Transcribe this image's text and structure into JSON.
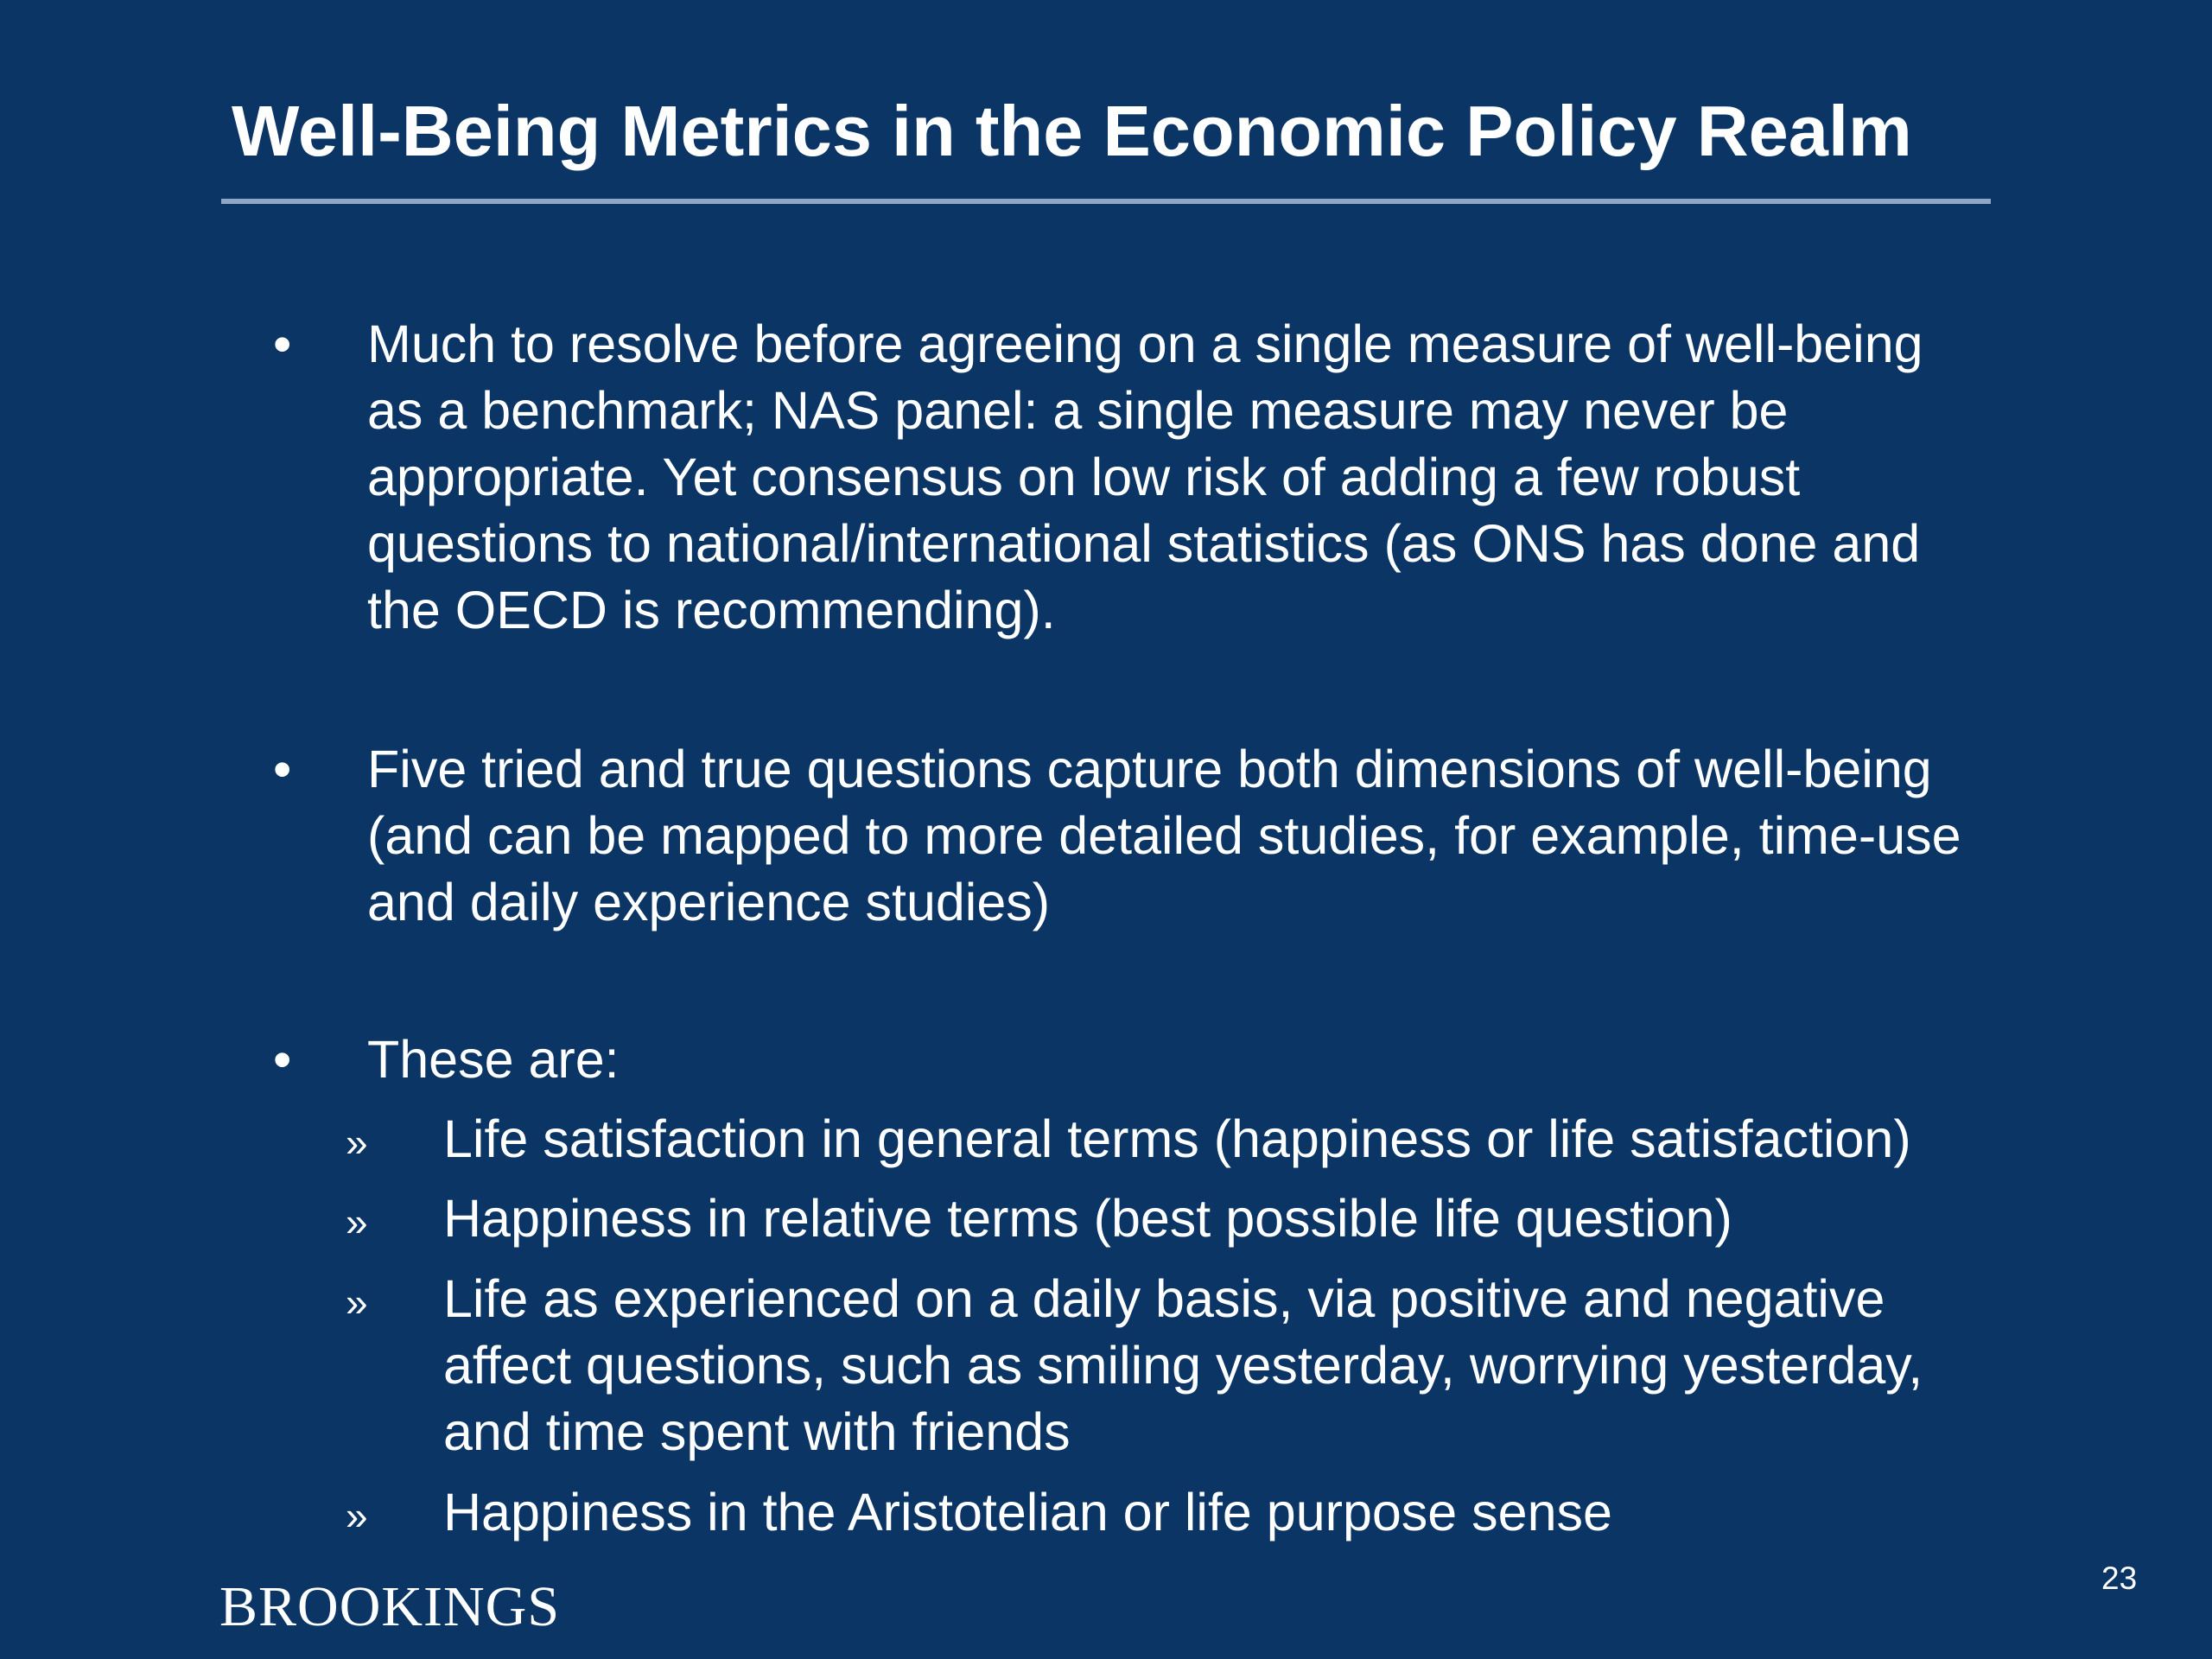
{
  "slide": {
    "title": "Well-Being Metrics in the Economic Policy Realm",
    "bullets": [
      {
        "marker": "•",
        "text": "Much to resolve before agreeing on a single measure of well-being as a benchmark; NAS panel: a single measure may never be appropriate. Yet consensus on low risk of adding a few robust questions to national/international statistics (as ONS has done and the OECD is recommending)."
      },
      {
        "marker": "•",
        "text": "Five tried and true questions capture both dimensions of well-being (and can be mapped to more detailed studies, for example, time-use and daily experience studies)"
      },
      {
        "marker": "•",
        "text": "These are:"
      }
    ],
    "sub_bullets": [
      {
        "marker": "»",
        "text": "Life satisfaction in general terms (happiness or life satisfaction)"
      },
      {
        "marker": "»",
        "text": "Happiness in relative terms (best possible life question)"
      },
      {
        "marker": "»",
        "text": "Life as experienced on a daily basis, via positive and negative affect questions, such as smiling yesterday, worrying yesterday, and time spent with friends"
      },
      {
        "marker": "»",
        "text": "Happiness in the Aristotelian or life purpose sense"
      }
    ],
    "brand": "BROOKINGS",
    "page_number": "23"
  }
}
